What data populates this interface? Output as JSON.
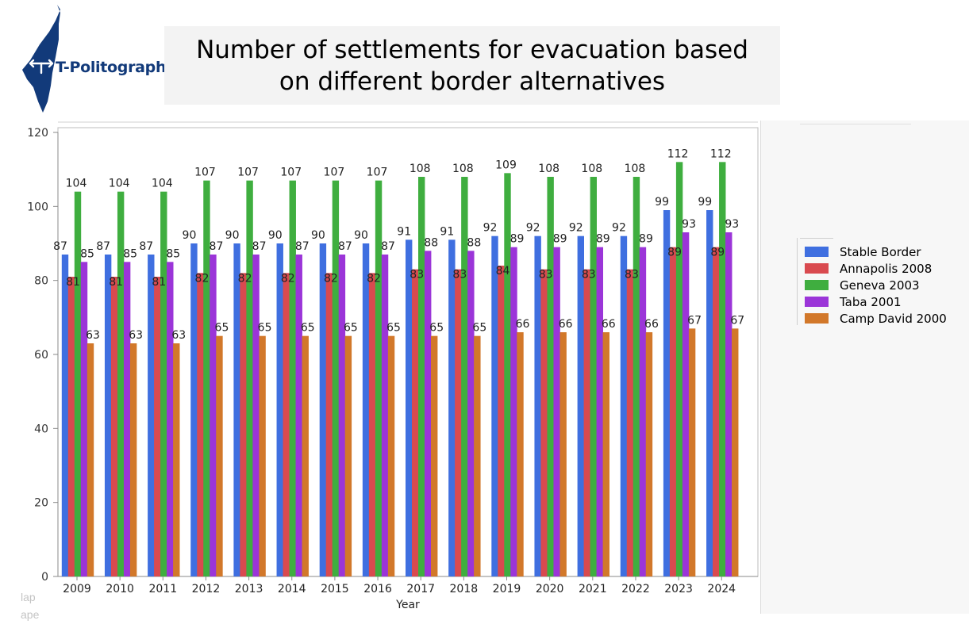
{
  "brand": {
    "name": "T-Politography"
  },
  "chart_data": {
    "type": "bar",
    "title": "Number of settlements for evacuation based on different border alternatives",
    "xlabel": "Year",
    "ylabel": "",
    "ylim": [
      0,
      120
    ],
    "yticks": [
      0,
      20,
      40,
      60,
      80,
      100,
      120
    ],
    "categories": [
      "2009",
      "2010",
      "2011",
      "2012",
      "2013",
      "2014",
      "2015",
      "2016",
      "2017",
      "2018",
      "2019",
      "2020",
      "2021",
      "2022",
      "2023",
      "2024"
    ],
    "legend_position": "right",
    "series": [
      {
        "name": "Stable Border",
        "color": "#3f6fe0",
        "values": [
          87,
          87,
          87,
          90,
          90,
          90,
          90,
          90,
          91,
          91,
          92,
          92,
          92,
          92,
          99,
          99
        ]
      },
      {
        "name": "Annapolis 2008",
        "color": "#d94a4f",
        "values": [
          81,
          81,
          81,
          82,
          82,
          82,
          82,
          82,
          83,
          83,
          84,
          83,
          83,
          83,
          89,
          89
        ]
      },
      {
        "name": "Geneva 2003",
        "color": "#3fae3f",
        "values": [
          104,
          104,
          104,
          107,
          107,
          107,
          107,
          107,
          108,
          108,
          109,
          108,
          108,
          108,
          112,
          112
        ]
      },
      {
        "name": "Taba 2001",
        "color": "#9b35d8",
        "values": [
          85,
          85,
          85,
          87,
          87,
          87,
          87,
          87,
          88,
          88,
          89,
          89,
          89,
          89,
          93,
          93
        ]
      },
      {
        "name": "Camp David 2000",
        "color": "#d2782a",
        "values": [
          63,
          63,
          63,
          65,
          65,
          65,
          65,
          65,
          65,
          65,
          66,
          66,
          66,
          66,
          67,
          67
        ]
      }
    ]
  },
  "bottom_faint": {
    "line1": "lap",
    "line2": "ape"
  }
}
